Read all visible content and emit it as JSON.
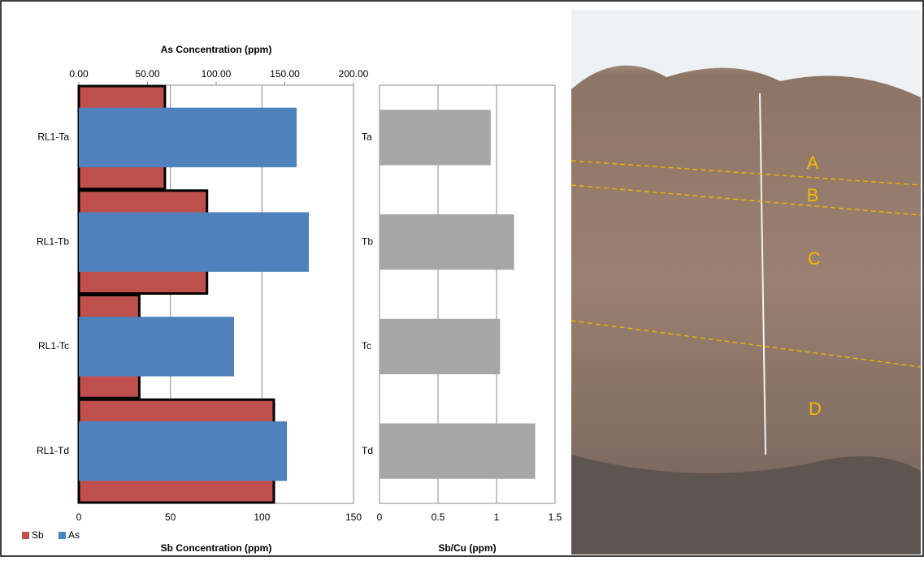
{
  "chart_data": [
    {
      "type": "bar",
      "orientation": "horizontal",
      "categories": [
        "RL1-Ta",
        "RL1-Tb",
        "RL1-Tc",
        "RL1-Td"
      ],
      "series": [
        {
          "name": "Sb",
          "color": "#c0504d",
          "values": [
            47,
            70,
            33,
            106.5
          ]
        },
        {
          "name": "As",
          "color": "#4f81bd",
          "axis": "x2",
          "values": [
            158.6,
            167.5,
            113,
            151.5
          ]
        }
      ],
      "xlabel": "Sb Concentration (ppm)",
      "x2label": "As Concentration (ppm)",
      "xlim": [
        0,
        150
      ],
      "xticks": [
        0,
        50,
        100,
        150
      ],
      "x2lim": [
        0,
        200
      ],
      "x2ticks": [
        {
          "value": 0,
          "label": "0.00"
        },
        {
          "value": 50,
          "label": "50.00"
        },
        {
          "value": 100,
          "label": "100.00"
        },
        {
          "value": 150,
          "label": "150.00"
        },
        {
          "value": 200,
          "label": "200.00"
        }
      ],
      "grid": true,
      "legend": "bottom-left"
    },
    {
      "type": "bar",
      "orientation": "horizontal",
      "categories": [
        "Ta",
        "Tb",
        "Tc",
        "Td"
      ],
      "values": [
        0.95,
        1.15,
        1.03,
        1.33
      ],
      "color": "#a6a6a6",
      "xlabel": "Sb/Cu (ppm)",
      "xlim": [
        0,
        1.5
      ],
      "xticks": [
        0,
        0.5,
        1,
        1.5
      ],
      "grid": true
    }
  ],
  "photo": {
    "labels": [
      "A",
      "B",
      "C",
      "D"
    ]
  }
}
